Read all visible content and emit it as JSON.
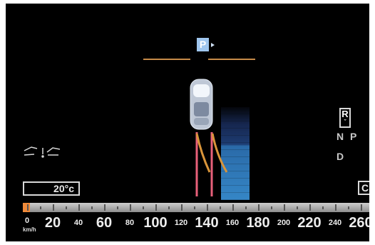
{
  "park_indicator": {
    "label": "P"
  },
  "gear_selector": {
    "active": "R",
    "active_marker": "ˇ",
    "gears": [
      "N",
      "P",
      "D"
    ]
  },
  "outside_temperature": {
    "value": "20°c"
  },
  "fuel_indicator": {
    "label": "C"
  },
  "speedometer": {
    "unit": "km/h",
    "bar_fraction": 0.02,
    "labels": [
      "0",
      "20",
      "40",
      "60",
      "80",
      "100",
      "120",
      "140",
      "160",
      "180",
      "200",
      "220",
      "240",
      "260"
    ],
    "max": 260
  },
  "colors": {
    "guide_line": "#c68a48",
    "trajectory": "#e07a52",
    "sensor_column": "#3586c6",
    "park_badge": "#9fc6ee",
    "speed_fill": "#f08a3a"
  },
  "icons": [
    "park-assist-icon",
    "car-top-view-icon",
    "lane-warning-icon"
  ]
}
